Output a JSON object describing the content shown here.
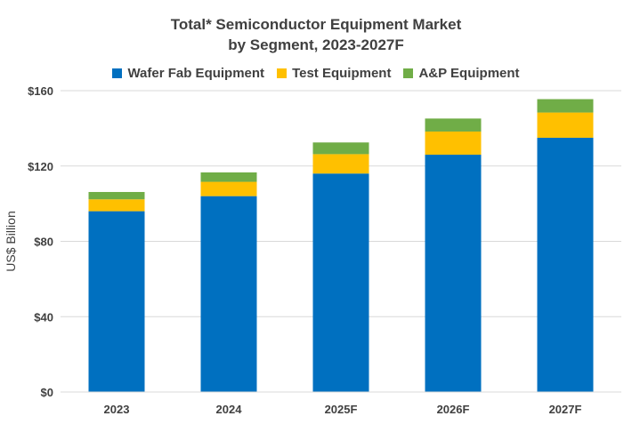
{
  "chart_data": {
    "type": "bar",
    "stacked": true,
    "title": [
      "Total* Semiconductor Equipment Market",
      "by Segment, 2023-2027F"
    ],
    "xlabel": "",
    "ylabel": "US$ Billion",
    "ylim": [
      0,
      160
    ],
    "yticks": [
      0,
      40,
      80,
      120,
      160
    ],
    "ytick_labels": [
      "$0",
      "$40",
      "$80",
      "$120",
      "$160"
    ],
    "grid": true,
    "legend": "top",
    "categories": [
      "2023",
      "2024",
      "2025F",
      "2026F",
      "2027F"
    ],
    "series": [
      {
        "name": "Wafer Fab Equipment",
        "color": "#0070C0",
        "values": [
          96,
          104,
          116,
          126,
          135
        ]
      },
      {
        "name": "Test Equipment",
        "color": "#FFC000",
        "values": [
          6.3,
          7.6,
          10.3,
          12.3,
          13.4
        ]
      },
      {
        "name": "A&P Equipment",
        "color": "#70AD47",
        "values": [
          3.9,
          5.0,
          6.2,
          6.9,
          7.1
        ]
      }
    ]
  }
}
